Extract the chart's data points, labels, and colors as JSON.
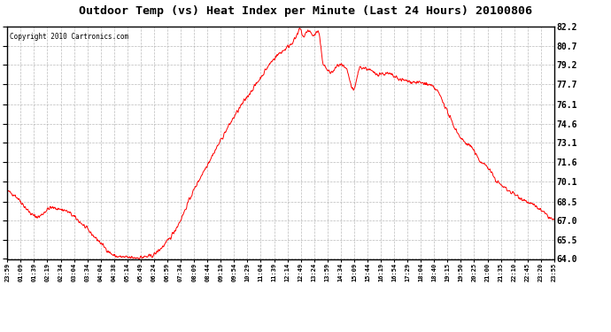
{
  "title": "Outdoor Temp (vs) Heat Index per Minute (Last 24 Hours) 20100806",
  "copyright": "Copyright 2010 Cartronics.com",
  "line_color": "#ff0000",
  "background_color": "#ffffff",
  "plot_bg_color": "#ffffff",
  "grid_color": "#aaaaaa",
  "ylim": [
    64.0,
    82.2
  ],
  "yticks": [
    64.0,
    65.5,
    67.0,
    68.5,
    70.1,
    71.6,
    73.1,
    74.6,
    76.1,
    77.7,
    79.2,
    80.7,
    82.2
  ],
  "xtick_labels": [
    "23:59",
    "01:09",
    "01:39",
    "02:19",
    "02:34",
    "03:04",
    "03:34",
    "04:04",
    "04:38",
    "05:14",
    "05:49",
    "06:24",
    "06:59",
    "07:34",
    "08:09",
    "08:44",
    "09:19",
    "09:54",
    "10:29",
    "11:04",
    "11:39",
    "12:14",
    "12:49",
    "13:24",
    "13:59",
    "14:34",
    "15:09",
    "15:44",
    "16:19",
    "16:54",
    "17:29",
    "18:04",
    "18:40",
    "19:15",
    "19:50",
    "20:25",
    "21:00",
    "21:35",
    "22:10",
    "22:45",
    "23:20",
    "23:55"
  ],
  "n_points": 1440,
  "seed": 42,
  "figsize": [
    6.9,
    3.75
  ],
  "dpi": 100
}
